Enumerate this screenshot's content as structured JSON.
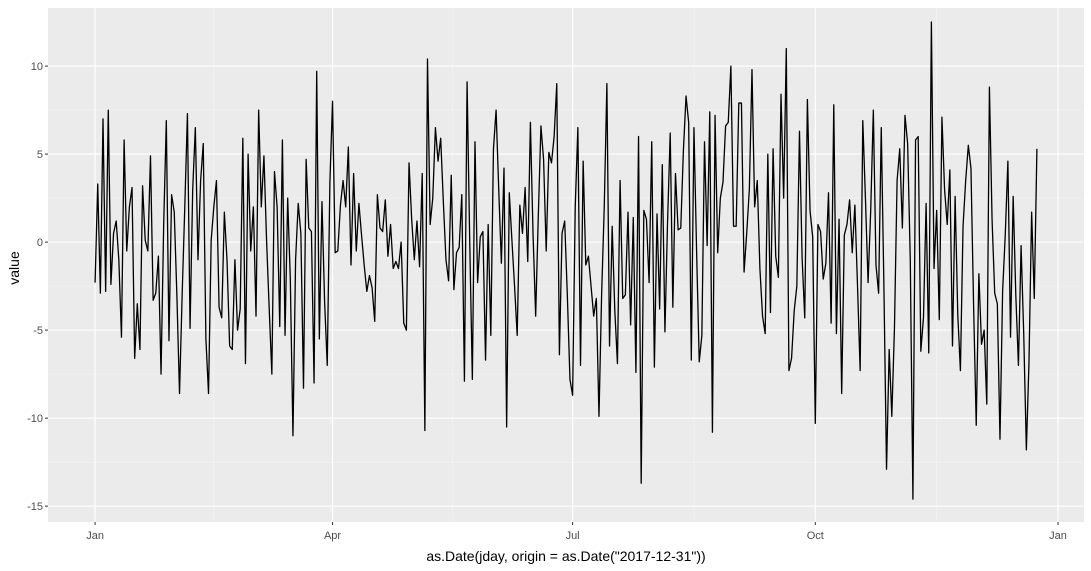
{
  "chart_data": {
    "type": "line",
    "title": "",
    "xlabel": "as.Date(jday, origin = as.Date(\"2017-12-31\"))",
    "ylabel": "value",
    "x_start_date": "2018-01-01",
    "x_tick_labels": [
      "Jan",
      "Apr",
      "Jul",
      "Oct",
      "Jan"
    ],
    "x_tick_dates": [
      "2018-01-01",
      "2018-04-01",
      "2018-07-01",
      "2018-10-01",
      "2019-01-01"
    ],
    "y_ticks": [
      -15,
      -10,
      -5,
      0,
      5,
      10
    ],
    "y_tick_labels": [
      "-15",
      "-10",
      "-5",
      "0",
      "5",
      "10"
    ],
    "ylim": [
      -15.9,
      13.3
    ],
    "grid": true,
    "legend": "none",
    "colors": {
      "panel_background": "#ebebeb",
      "grid_major": "#ffffff",
      "grid_minor": "#f4f4f4",
      "line": "#000000"
    },
    "series": [
      {
        "values": [
          -2.3,
          3.3,
          -2.9,
          7.0,
          -2.8,
          7.5,
          -2.4,
          0.5,
          1.2,
          -1.0,
          -5.4,
          5.8,
          -0.5,
          2.0,
          3.1,
          -6.6,
          -3.5,
          -6.1,
          3.2,
          0.1,
          -0.5,
          4.9,
          -3.3,
          -2.9,
          -0.8,
          -7.5,
          1.0,
          6.9,
          -5.6,
          2.7,
          1.7,
          -3.0,
          -8.6,
          -3.0,
          2.0,
          7.3,
          -4.9,
          3.0,
          6.5,
          -1.0,
          3.5,
          5.6,
          -5.5,
          -8.6,
          0.1,
          2.0,
          3.5,
          -3.7,
          -4.3,
          1.7,
          -1.0,
          -5.9,
          -6.1,
          -1.0,
          -5.0,
          -3.8,
          5.9,
          -6.9,
          5.0,
          -0.5,
          2.0,
          -4.2,
          7.5,
          2.0,
          4.9,
          0.1,
          -3.8,
          -7.5,
          4.0,
          2.0,
          -4.8,
          5.8,
          -5.3,
          2.5,
          -2.1,
          -11.0,
          -1.0,
          2.2,
          0.5,
          -8.3,
          4.7,
          0.8,
          0.6,
          -8.0,
          9.7,
          -5.5,
          2.3,
          -3.4,
          -7.0,
          3.4,
          8.0,
          -0.6,
          -0.5,
          2.1,
          3.5,
          2.0,
          5.4,
          -1.3,
          3.9,
          -0.5,
          2.2,
          0.4,
          -1.3,
          -2.8,
          -1.9,
          -2.6,
          -4.5,
          2.7,
          0.8,
          0.6,
          2.4,
          -0.8,
          1.0,
          -1.5,
          -1.1,
          -1.5,
          0.0,
          -4.6,
          -5.0,
          4.5,
          1.3,
          -1.0,
          1.2,
          -1.4,
          3.9,
          -10.7,
          10.4,
          1.0,
          2.5,
          6.5,
          4.6,
          5.9,
          2.3,
          -1.0,
          -2.2,
          3.8,
          -2.7,
          -0.6,
          -0.3,
          2.7,
          -7.9,
          9.1,
          0.1,
          -7.8,
          5.7,
          -2.3,
          0.3,
          0.6,
          -6.7,
          1.0,
          -5.3,
          5.3,
          7.5,
          3.0,
          -1.2,
          4.2,
          -10.5,
          2.8,
          0.1,
          -2.5,
          -5.3,
          2.1,
          0.5,
          3.1,
          -1.1,
          6.8,
          0.5,
          -4.2,
          1.5,
          6.6,
          4.7,
          -0.5,
          5.1,
          4.5,
          6.0,
          9.0,
          -6.4,
          0.5,
          1.2,
          -3.0,
          -7.8,
          -8.7,
          2.0,
          6.5,
          -7.0,
          4.6,
          -1.3,
          -0.8,
          -2.5,
          -4.2,
          -3.2,
          -9.9,
          -3.0,
          2.0,
          9.0,
          -5.9,
          0.9,
          -3.9,
          -6.9,
          3.5,
          -3.2,
          -3.0,
          1.7,
          -4.7,
          1.4,
          -7.4,
          6.0,
          -13.7,
          1.8,
          1.3,
          -2.3,
          5.7,
          -7.1,
          1.6,
          -3.8,
          4.4,
          -5.1,
          1.2,
          6.2,
          -3.7,
          3.9,
          0.7,
          0.8,
          5.2,
          8.3,
          6.8,
          -6.7,
          6.5,
          -0.5,
          -6.8,
          -5.3,
          5.7,
          -0.2,
          7.4,
          -10.8,
          7.2,
          -0.6,
          2.5,
          3.4,
          6.6,
          6.8,
          10.0,
          0.9,
          0.9,
          7.9,
          7.9,
          -1.7,
          0.5,
          3.0,
          9.8,
          2.0,
          3.5,
          -1.5,
          -4.2,
          -5.2,
          5.0,
          -4.0,
          5.3,
          -0.8,
          -2.0,
          8.4,
          2.5,
          11.0,
          -7.3,
          -6.6,
          -3.9,
          -2.5,
          6.3,
          -0.9,
          -4.3,
          8.1,
          1.8,
          0.3,
          -10.3,
          1.0,
          0.6,
          -2.1,
          -1.2,
          2.8,
          -4.6,
          7.8,
          -5.2,
          1.3,
          -8.6,
          0.4,
          1.0,
          2.4,
          -0.6,
          2.1,
          -2.5,
          -7.3,
          6.9,
          2.5,
          -2.3,
          1.8,
          7.5,
          -1.3,
          -2.9,
          6.5,
          -2.5,
          -12.9,
          -6.1,
          -9.9,
          -4.9,
          3.5,
          5.3,
          0.8,
          7.2,
          5.6,
          -1.0,
          -14.6,
          5.8,
          6.0,
          -6.2,
          -4.3,
          2.2,
          -6.3,
          12.5,
          -1.5,
          1.8,
          -4.4,
          7.1,
          3.0,
          1.0,
          4.1,
          -5.9,
          2.6,
          -4.1,
          -7.3,
          0.9,
          3.5,
          5.5,
          4.2,
          -3.6,
          -10.4,
          -1.8,
          -5.8,
          -5.0,
          -9.2,
          8.8,
          1.3,
          -2.9,
          -3.5,
          -11.2,
          -2.8,
          0.4,
          4.6,
          -5.4,
          2.6,
          -3.0,
          -7.0,
          -0.2,
          -5.2,
          -11.8,
          -6.8,
          1.7,
          -3.2,
          5.3
        ]
      }
    ]
  }
}
